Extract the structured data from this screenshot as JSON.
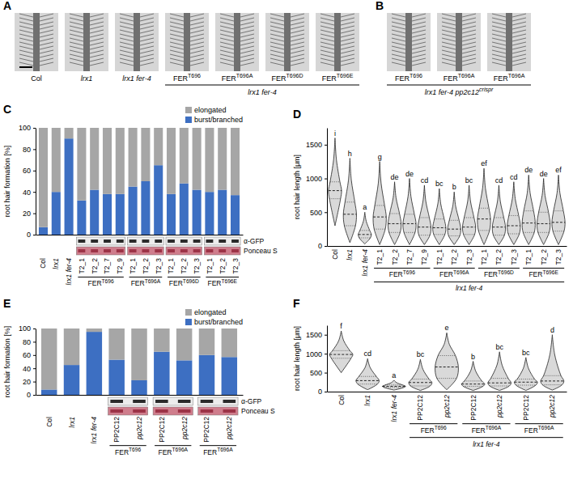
{
  "images": [
    {
      "panel_label": "A",
      "labels": [
        "Col",
        "lrx1",
        "lrx1 fer-4",
        {
          "text": "FER",
          "sup": "T696"
        },
        {
          "text": "FER",
          "sup": "T696A"
        },
        {
          "text": "FER",
          "sup": "T696D"
        },
        {
          "text": "FER",
          "sup": "T696E"
        }
      ],
      "groups": [
        {
          "text": "lrx1 fer-4",
          "span": [
            3,
            6
          ]
        }
      ]
    },
    {
      "panel_label": "B",
      "labels": [
        {
          "text": "FER",
          "sup": "T696"
        },
        {
          "text": "FER",
          "sup": "T696A"
        },
        {
          "text": "FER",
          "sup": "T696A"
        }
      ],
      "groups": [
        {
          "text": "lrx1 fer-4 pp2c12",
          "sup": "crispr",
          "span": [
            0,
            2
          ]
        }
      ]
    }
  ],
  "chart_data": [
    {
      "panel_label": "C",
      "type": "bar",
      "stacked": true,
      "legend": "top-right",
      "ylabel": "root hair formation [%]",
      "ylim": [
        0,
        100
      ],
      "yticks": [
        0,
        20,
        40,
        60,
        80,
        100
      ],
      "categories": [
        "Col",
        "lrx1",
        "lrx1 fer-4",
        "T2_1",
        "T2_2",
        "T2_7",
        "T2_9",
        "T2_1",
        "T2_2",
        "T2_3",
        "T2_1",
        "T2_2",
        "T2_3",
        "T2_1",
        "T2_2",
        "T2_3"
      ],
      "series": [
        {
          "name": "burst/branched",
          "color": "#3d6fc2",
          "values": [
            7,
            40,
            90,
            32,
            42,
            38,
            38,
            45,
            50,
            65,
            38,
            48,
            42,
            40,
            42,
            37
          ]
        },
        {
          "name": "elongated",
          "color": "#a6a6a6",
          "values": [
            93,
            60,
            10,
            68,
            58,
            62,
            62,
            55,
            50,
            35,
            62,
            52,
            58,
            60,
            58,
            63
          ]
        }
      ],
      "groups": [
        {
          "text": "FER",
          "sup": "T696",
          "span": [
            3,
            6
          ]
        },
        {
          "text": "FER",
          "sup": "T696A",
          "span": [
            7,
            9
          ]
        },
        {
          "text": "FER",
          "sup": "T696D",
          "span": [
            10,
            12
          ]
        },
        {
          "text": "FER",
          "sup": "T696E",
          "span": [
            13,
            15
          ]
        }
      ],
      "blot_labels": [
        "α-GFP",
        "Ponceau S"
      ]
    },
    {
      "panel_label": "D",
      "type": "violin",
      "color": "#d9d9d9",
      "ylabel": "root hair length [μm]",
      "ylim": [
        0,
        1750
      ],
      "yticks": [
        0,
        500,
        1000,
        1500
      ],
      "categories": [
        "Col",
        "lrx1",
        "lrx1 fer-4",
        "T2_1",
        "T2_2",
        "T2_7",
        "T2_9",
        "T2_1",
        "T2_2",
        "T2_3",
        "T2_1",
        "T2_2",
        "T2_3",
        "T2_1",
        "T2_2",
        "T2_3"
      ],
      "values": [
        820,
        470,
        170,
        430,
        330,
        330,
        280,
        270,
        250,
        280,
        400,
        280,
        300,
        340,
        330,
        350
      ],
      "q1": [
        700,
        300,
        120,
        250,
        200,
        200,
        160,
        170,
        150,
        170,
        230,
        160,
        180,
        200,
        200,
        220
      ],
      "q3": [
        950,
        650,
        230,
        600,
        480,
        470,
        420,
        400,
        380,
        420,
        560,
        420,
        450,
        520,
        500,
        520
      ],
      "min": [
        300,
        50,
        30,
        20,
        20,
        20,
        20,
        20,
        20,
        20,
        20,
        20,
        20,
        20,
        20,
        20
      ],
      "max": [
        1600,
        1300,
        500,
        1250,
        950,
        1000,
        900,
        850,
        800,
        900,
        1150,
        900,
        950,
        1050,
        1000,
        1050
      ],
      "letters": [
        "i",
        "h",
        "a",
        "g",
        "de",
        "de",
        "cd",
        "bc",
        "b",
        "bc",
        "ef",
        "cd",
        "cd",
        "de",
        "de",
        "ef"
      ],
      "groups": [
        {
          "text": "FER",
          "sup": "T696",
          "span": [
            3,
            6
          ]
        },
        {
          "text": "FER",
          "sup": "T696A",
          "span": [
            7,
            9
          ]
        },
        {
          "text": "FER",
          "sup": "T696D",
          "span": [
            10,
            12
          ]
        },
        {
          "text": "FER",
          "sup": "T696E",
          "span": [
            13,
            15
          ]
        }
      ],
      "outer_group": {
        "text": "lrx1 fer-4",
        "span": [
          3,
          15
        ]
      }
    },
    {
      "panel_label": "E",
      "type": "bar",
      "stacked": true,
      "legend": "top-right",
      "ylabel": "root hair formation [%]",
      "ylim": [
        0,
        100
      ],
      "yticks": [
        0,
        20,
        40,
        60,
        80,
        100
      ],
      "categories": [
        "Col",
        "lrx1",
        "lrx1 fer-4",
        "PP2C12",
        "pp2c12",
        "PP2C12",
        "pp2c12",
        "PP2C12",
        "pp2c12"
      ],
      "series": [
        {
          "name": "burst/branched",
          "color": "#3d6fc2",
          "values": [
            8,
            45,
            95,
            53,
            22,
            65,
            52,
            60,
            57
          ]
        },
        {
          "name": "elongated",
          "color": "#a6a6a6",
          "values": [
            92,
            55,
            5,
            47,
            78,
            35,
            48,
            40,
            43
          ]
        }
      ],
      "groups": [
        {
          "text": "FER",
          "sup": "T696",
          "span": [
            3,
            4
          ]
        },
        {
          "text": "FER",
          "sup": "T696A",
          "span": [
            5,
            6
          ]
        },
        {
          "text": "FER",
          "sup": "T696A",
          "span": [
            7,
            8
          ]
        }
      ],
      "blot_labels": [
        "α-GFP",
        "Ponceau S"
      ]
    },
    {
      "panel_label": "F",
      "type": "violin",
      "color": "#d9d9d9",
      "ylabel": "root hair length [μm]",
      "ylim": [
        0,
        1750
      ],
      "yticks": [
        0,
        500,
        1000,
        1500
      ],
      "categories": [
        "Col",
        "lrx1",
        "lrx1 fer-4",
        "PP2C12",
        "pp2c12",
        "PP2C12",
        "pp2c12",
        "PP2C12",
        "pp2c12"
      ],
      "values": [
        980,
        290,
        140,
        240,
        650,
        200,
        230,
        250,
        280
      ],
      "q1": [
        880,
        200,
        110,
        150,
        350,
        140,
        150,
        170,
        180
      ],
      "q3": [
        1080,
        400,
        175,
        330,
        950,
        280,
        350,
        330,
        420
      ],
      "min": [
        500,
        50,
        40,
        30,
        50,
        30,
        30,
        30,
        40
      ],
      "max": [
        1600,
        870,
        300,
        850,
        1550,
        800,
        1050,
        900,
        1500
      ],
      "letters": [
        "f",
        "cd",
        "a",
        "bc",
        "e",
        "b",
        "bc",
        "bc",
        "d"
      ],
      "groups": [
        {
          "text": "FER",
          "sup": "T696",
          "span": [
            3,
            4
          ]
        },
        {
          "text": "FER",
          "sup": "T696A",
          "span": [
            5,
            6
          ]
        },
        {
          "text": "FER",
          "sup": "T696A",
          "span": [
            7,
            8
          ]
        }
      ],
      "outer_group": {
        "text": "lrx1 fer-4",
        "span": [
          3,
          8
        ]
      }
    }
  ]
}
